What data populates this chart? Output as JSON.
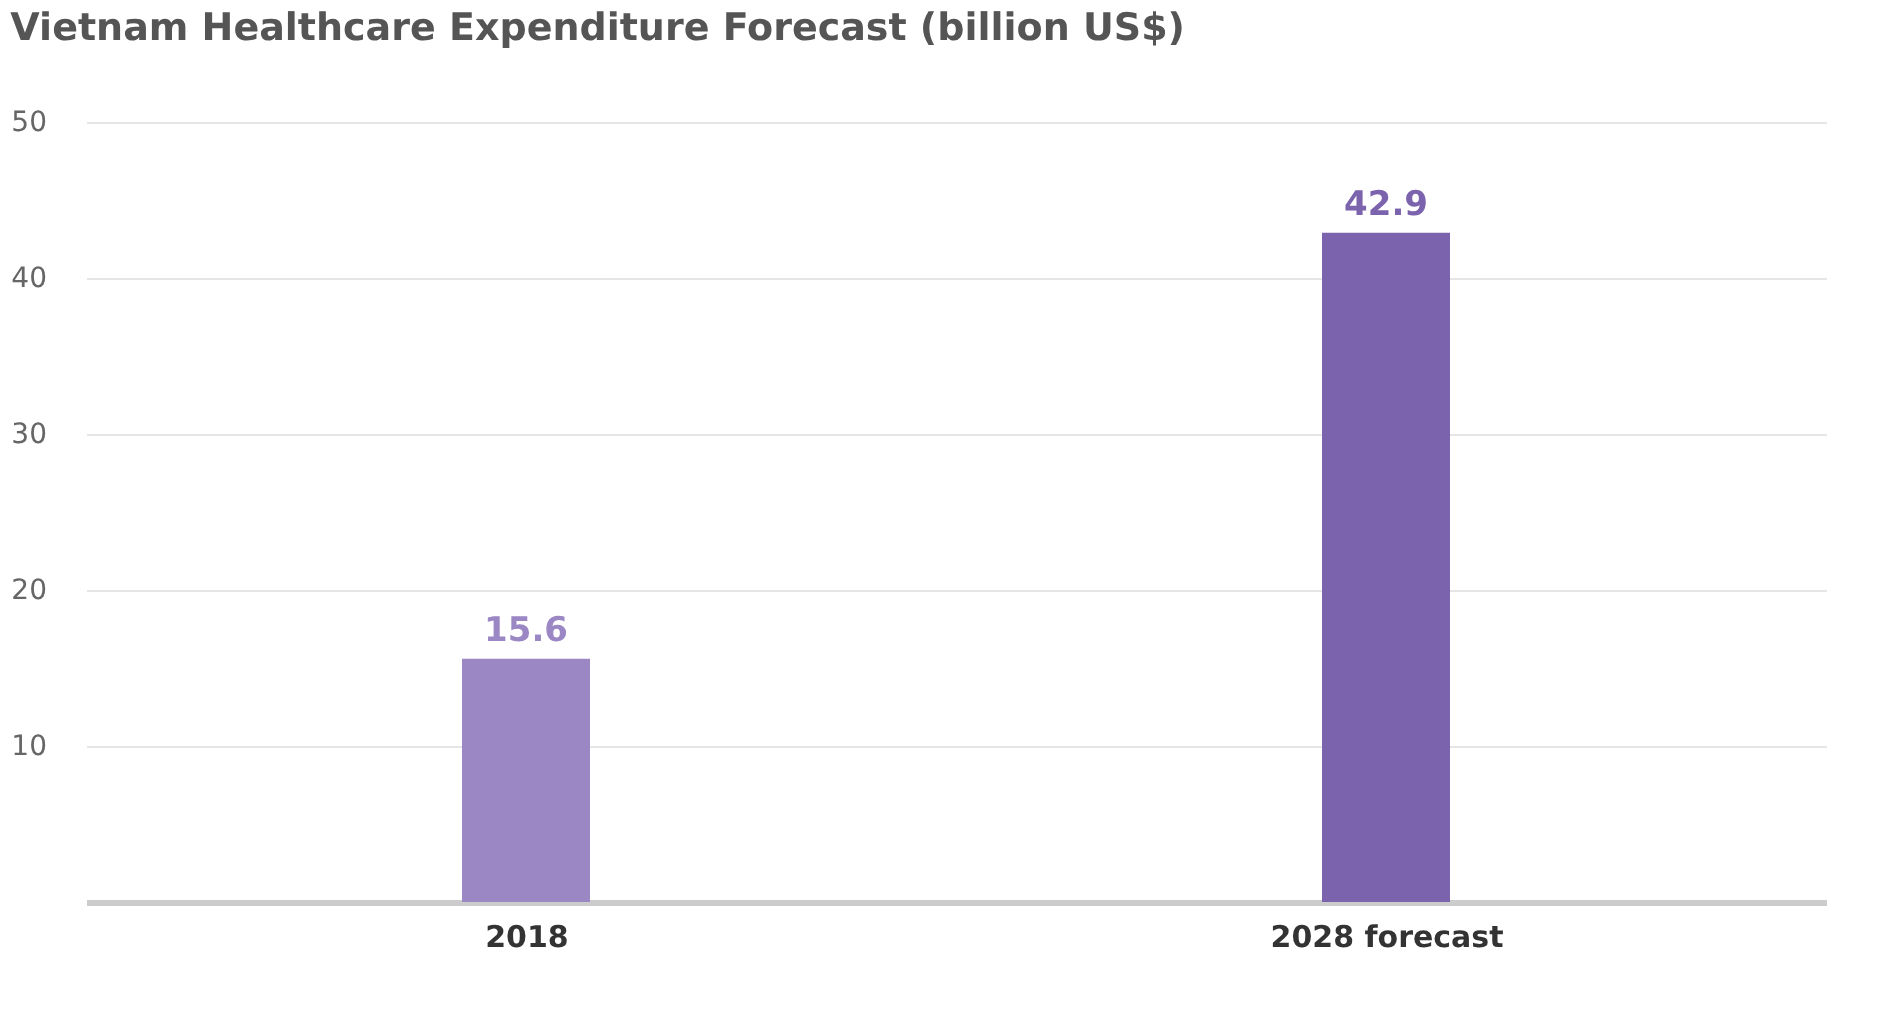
{
  "chart_data": {
    "type": "bar",
    "title": "Vietnam Healthcare Expenditure Forecast (billion US$)",
    "categories": [
      "2018",
      "2028 forecast"
    ],
    "values": [
      15.6,
      42.9
    ],
    "colors": [
      "#9a87c4",
      "#7b63ad"
    ],
    "ylim": [
      0,
      50
    ],
    "yticks": [
      10,
      20,
      30,
      40,
      50
    ],
    "grid": "y",
    "data_labels": true
  }
}
